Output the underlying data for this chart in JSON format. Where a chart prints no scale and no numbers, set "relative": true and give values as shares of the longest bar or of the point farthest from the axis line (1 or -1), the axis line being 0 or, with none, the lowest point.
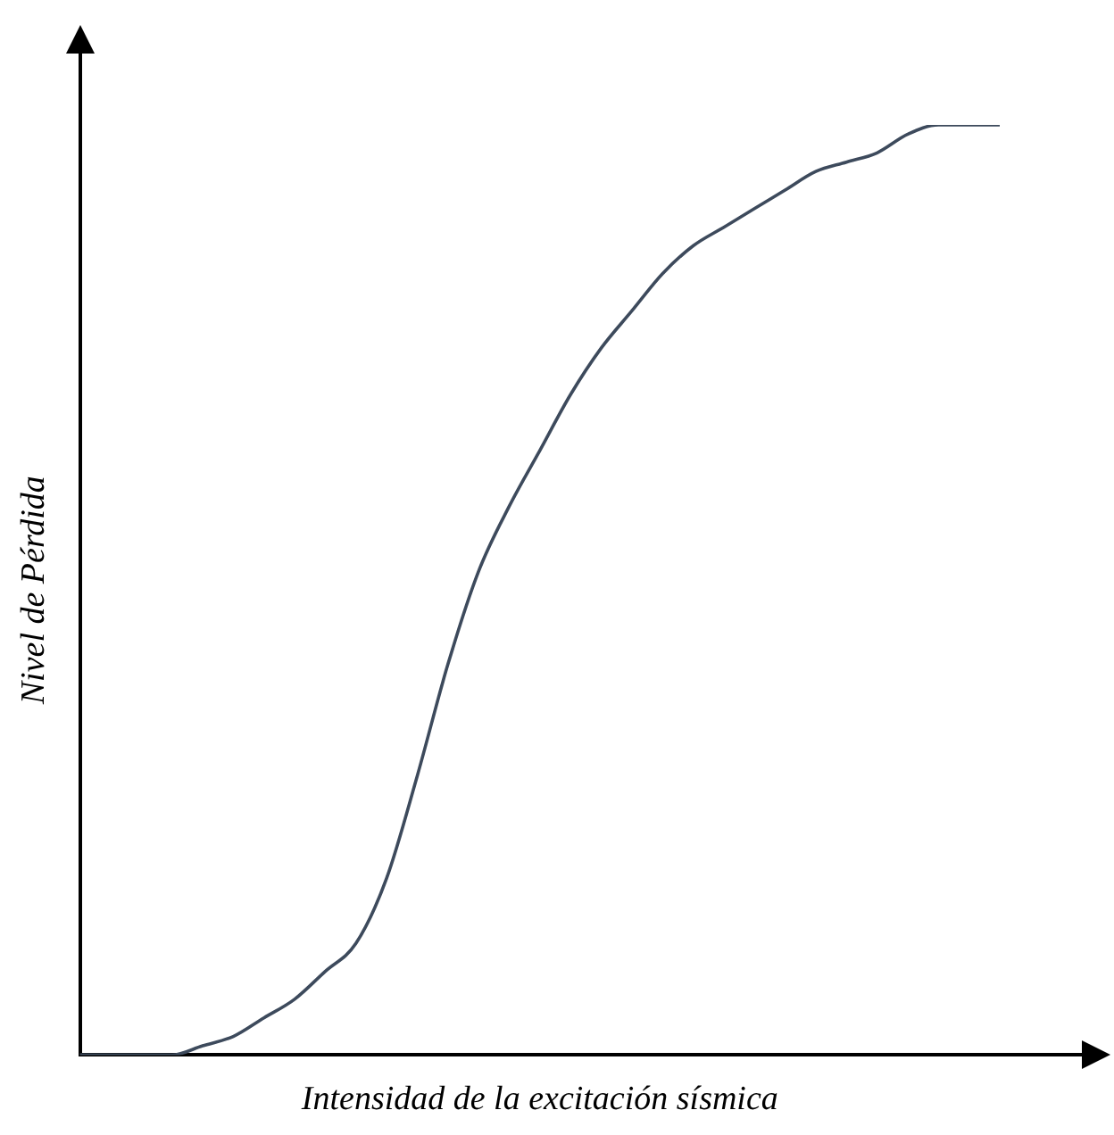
{
  "chart_data": {
    "type": "line",
    "relative": true,
    "xlabel": "Intensidad de la excitación sísmica",
    "ylabel": "Nivel de Pérdida",
    "categories": [
      null,
      null,
      null,
      null,
      null,
      null,
      null,
      null,
      null,
      null,
      null,
      null,
      null,
      null,
      null,
      null,
      null,
      null,
      null,
      null,
      null,
      null,
      null,
      null,
      null,
      null,
      null,
      null,
      null,
      null,
      null
    ],
    "series": [
      {
        "color": "#3d4a5c",
        "values": [
          0,
          0,
          0,
          0,
          0.01,
          0.02,
          0.04,
          0.06,
          0.09,
          0.12,
          0.19,
          0.3,
          0.42,
          0.52,
          0.59,
          0.65,
          0.71,
          0.76,
          0.8,
          0.84,
          0.87,
          0.89,
          0.91,
          0.93,
          0.95,
          0.96,
          0.97,
          0.99,
          1,
          1,
          1
        ]
      }
    ],
    "grid": false,
    "legend": false,
    "marker": "none",
    "line_style": "solid"
  }
}
